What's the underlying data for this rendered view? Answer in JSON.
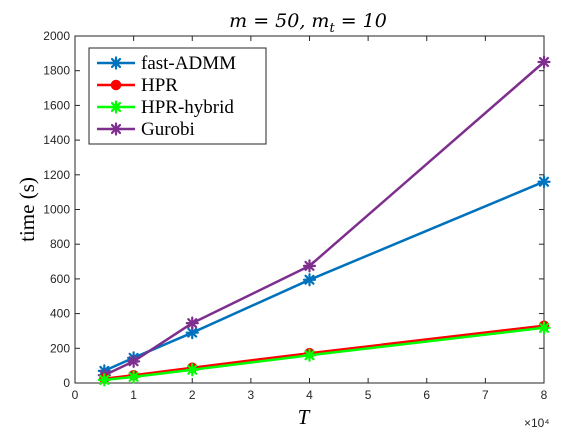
{
  "chart_data": {
    "type": "line",
    "title": "m = 50, m_t = 10",
    "xlabel": "T",
    "ylabel": "time (s)",
    "x_multiplier_label": "×10⁴",
    "xlim": [
      0,
      8
    ],
    "ylim": [
      0,
      2000
    ],
    "x_ticks": [
      "0",
      "1",
      "2",
      "3",
      "4",
      "5",
      "6",
      "7",
      "8"
    ],
    "y_ticks": [
      "0",
      "200",
      "400",
      "600",
      "800",
      "1000",
      "1200",
      "1400",
      "1600",
      "1800",
      "2000"
    ],
    "x": [
      0.5,
      1,
      2,
      4,
      8
    ],
    "legend_position": "top-left",
    "grid": false,
    "series": [
      {
        "name": "fast-ADMM",
        "values": [
          70,
          145,
          290,
          595,
          1160
        ],
        "color": "#0072BD",
        "marker": "star"
      },
      {
        "name": "HPR",
        "values": [
          25,
          45,
          88,
          172,
          330
        ],
        "color": "#FF0000",
        "marker": "circle"
      },
      {
        "name": "HPR-hybrid",
        "values": [
          18,
          35,
          76,
          160,
          318
        ],
        "color": "#00FF00",
        "marker": "star"
      },
      {
        "name": "Gurobi",
        "values": [
          45,
          125,
          345,
          675,
          1850
        ],
        "color": "#7E2F8E",
        "marker": "star"
      }
    ]
  }
}
